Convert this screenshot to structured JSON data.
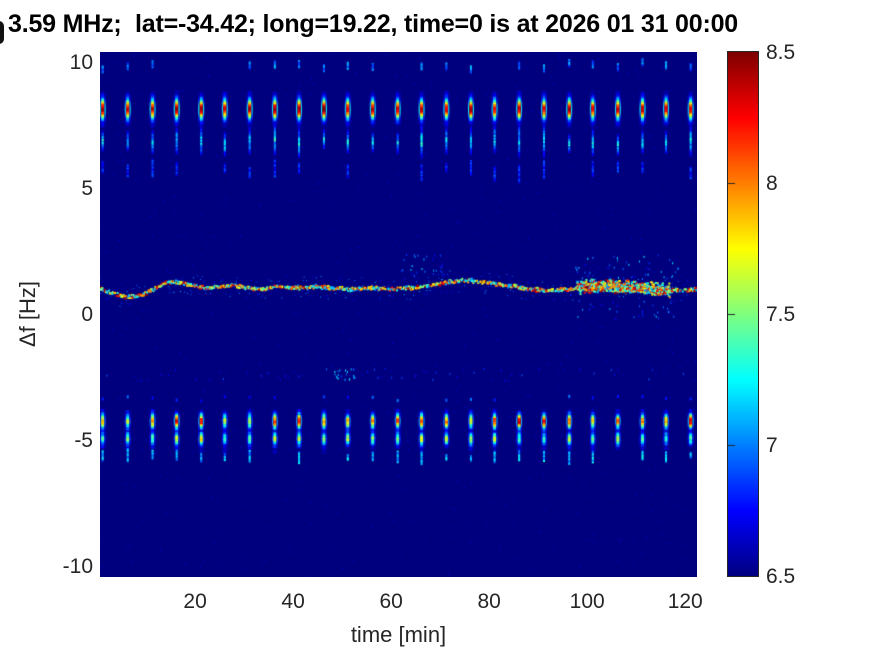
{
  "figure": {
    "title": "3.59 MHz;  lat=-34.42; long=19.22, time=0 is at 2026 01 31 00:00"
  },
  "chart_data": {
    "type": "heatmap",
    "subtype": "doppler-spectrogram",
    "title": "3.59 MHz;  lat=-34.42; long=19.22, time=0 is at 2026 01 31 00:00",
    "xlabel": "time [min]",
    "ylabel": "Δf [Hz]",
    "xlim": [
      0.6,
      122.4
    ],
    "ylim": [
      -10.43,
      10.43
    ],
    "xticks": [
      20,
      40,
      60,
      80,
      100,
      120
    ],
    "yticks": [
      10,
      5,
      0,
      -5,
      -10
    ],
    "grid": false,
    "legend": false,
    "colorbar": {
      "position": "right",
      "clim": [
        6.5,
        8.5
      ],
      "ticks": [
        8.5,
        8,
        7.5,
        7,
        6.5
      ],
      "colormap": "jet"
    },
    "background_value": 6.5,
    "features": {
      "pulse_train": {
        "start_min": 1.2,
        "period_min": 5,
        "count": 25,
        "upper_band": {
          "f_top": 8.85,
          "f_bottom": 7.45,
          "f_peak": 8.15,
          "peak_sigma_hz": 0.38,
          "peak_value_range": [
            8.25,
            8.5
          ],
          "sub_dash": {
            "f_center": 6.85,
            "half_len_range": [
              0.25,
              0.7
            ],
            "value_range": [
              7.0,
              7.5
            ]
          },
          "top_dot": {
            "f_center": 9.85,
            "value_range": [
              6.8,
              7.15
            ],
            "probability": 0.85
          },
          "faint_dash": {
            "f_center": 5.7,
            "half_len_range": [
              0.15,
              0.35
            ],
            "value_range": [
              6.65,
              6.95
            ],
            "probability": 0.75
          }
        },
        "lower_band": {
          "f_top": -3.8,
          "f_bottom": -5.5,
          "peaks": [
            {
              "f": -4.25,
              "sigma": 0.28,
              "value_range": [
                7.6,
                8.35
              ]
            },
            {
              "f": -4.95,
              "sigma": 0.25,
              "value_range": [
                7.3,
                7.8
              ]
            }
          ],
          "above_dot": {
            "f_center": -3.35,
            "value_range": [
              6.7,
              7.0
            ],
            "probability": 0.7
          },
          "below_dash": {
            "f_center": -5.65,
            "half_len_range": [
              0.1,
              0.25
            ],
            "value_range": [
              6.9,
              7.3
            ],
            "probability": 0.9
          }
        }
      },
      "doppler_trace": {
        "path": [
          [
            0.6,
            1.0
          ],
          [
            3,
            0.85
          ],
          [
            6,
            0.7
          ],
          [
            9,
            0.75
          ],
          [
            12,
            1.05
          ],
          [
            14,
            1.25
          ],
          [
            16,
            1.3
          ],
          [
            19,
            1.2
          ],
          [
            22,
            1.05
          ],
          [
            25,
            1.1
          ],
          [
            28,
            1.15
          ],
          [
            31,
            1.05
          ],
          [
            34,
            1.0
          ],
          [
            37,
            1.1
          ],
          [
            40,
            1.05
          ],
          [
            44,
            1.1
          ],
          [
            48,
            1.05
          ],
          [
            52,
            1.0
          ],
          [
            56,
            1.05
          ],
          [
            60,
            1.0
          ],
          [
            64,
            1.05
          ],
          [
            68,
            1.15
          ],
          [
            72,
            1.3
          ],
          [
            76,
            1.35
          ],
          [
            80,
            1.25
          ],
          [
            84,
            1.15
          ],
          [
            88,
            1.0
          ],
          [
            92,
            0.95
          ],
          [
            96,
            1.0
          ],
          [
            100,
            1.1
          ],
          [
            104,
            1.15
          ],
          [
            108,
            1.1
          ],
          [
            112,
            1.05
          ],
          [
            116,
            0.95
          ],
          [
            120,
            0.95
          ],
          [
            122.4,
            1.0
          ]
        ],
        "value_range": [
          7.0,
          8.5
        ],
        "normal_spread_hz": 0.09,
        "blob": {
          "t_start": 98,
          "t_end": 117,
          "spread_hz": 0.3,
          "density": 4
        }
      },
      "scatter_dots": [
        {
          "t_range": [
            62,
            71
          ],
          "f_range": [
            1.5,
            2.4
          ],
          "count": 28,
          "value_range": [
            6.75,
            7.2
          ]
        },
        {
          "t_range": [
            97,
            119
          ],
          "f_range": [
            1.4,
            2.4
          ],
          "count": 45,
          "value_range": [
            6.75,
            7.25
          ]
        },
        {
          "t_range": [
            97,
            119
          ],
          "f_range": [
            -0.2,
            0.6
          ],
          "count": 30,
          "value_range": [
            6.75,
            7.15
          ]
        }
      ],
      "speckle_row": {
        "f_center": -2.4,
        "t_step": 0.7,
        "probability": 0.3,
        "value_range": [
          6.6,
          6.95
        ],
        "cluster": {
          "t_range": [
            46,
            53
          ],
          "count": 22,
          "value_range": [
            6.85,
            7.3
          ]
        }
      },
      "noise": {
        "count": 2600,
        "value_range": [
          6.5,
          6.75
        ]
      }
    }
  }
}
